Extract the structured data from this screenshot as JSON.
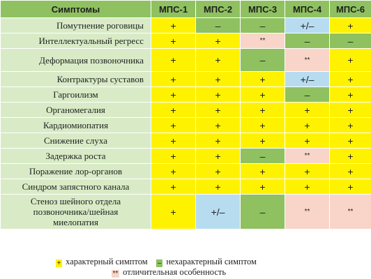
{
  "header": {
    "symptoms": "Симптомы",
    "columns": [
      "МПС-1",
      "МПС-2",
      "МПС-3",
      "МПС-4",
      "МПС-6"
    ]
  },
  "rows": [
    {
      "symptom": "Помутнение роговицы",
      "values": [
        "+",
        "–",
        "–",
        "+/–",
        "+"
      ]
    },
    {
      "symptom": "Интеллектуальный регресс",
      "values": [
        "+",
        "+",
        "**",
        "–",
        "–"
      ]
    },
    {
      "symptom": "Деформация позвоночника",
      "values": [
        "+",
        "+",
        "–",
        "**",
        "+"
      ]
    },
    {
      "symptom": "Контрактуры суставов",
      "values": [
        "+",
        "+",
        "+",
        "+/–",
        "+"
      ]
    },
    {
      "symptom": "Гаргоилизм",
      "values": [
        "+",
        "+",
        "+",
        "–",
        "+"
      ]
    },
    {
      "symptom": "Органомегалия",
      "values": [
        "+",
        "+",
        "+",
        "+",
        "+"
      ]
    },
    {
      "symptom": "Кардиомиопатия",
      "values": [
        "+",
        "+",
        "+",
        "+",
        "+"
      ]
    },
    {
      "symptom": "Снижение слуха",
      "values": [
        "+",
        "+",
        "+",
        "+",
        "+"
      ]
    },
    {
      "symptom": "Задержка роста",
      "values": [
        "+",
        "+",
        "–",
        "**",
        "+"
      ]
    },
    {
      "symptom": "Поражение лор-органов",
      "values": [
        "+",
        "+",
        "+",
        "+",
        "+"
      ]
    },
    {
      "symptom": "Синдром запястного канала",
      "values": [
        "+",
        "+",
        "+",
        "+",
        "+"
      ]
    },
    {
      "symptom_lines": [
        "Стеноз шейного отдела",
        "позвоночника/шейная",
        "миелопатия"
      ],
      "values": [
        "+",
        "+/–",
        "–",
        "**",
        "**"
      ]
    }
  ],
  "legend": {
    "plus_mark": "+",
    "plus_text": "характерный симптом",
    "minus_mark": "–",
    "minus_text": "нехарактерный симптом",
    "star_mark": "**",
    "star_text": "отличительная особенность"
  },
  "colors": {
    "plus": "#fff200",
    "minus": "#8fc161",
    "plus_minus": "#b7dcf0",
    "star": "#f8d5c8",
    "header": "#8fc161",
    "symptom_cell": "#d8ebc6"
  }
}
